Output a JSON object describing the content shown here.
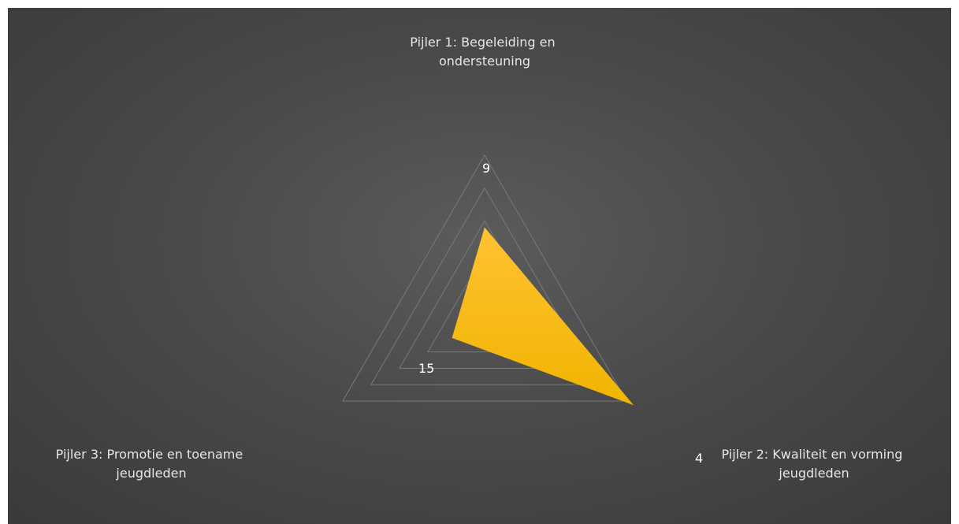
{
  "chart_data": {
    "type": "radar",
    "categories": [
      [
        "Pijler 1: Begeleiding en",
        "ondersteuning"
      ],
      [
        "Pijler 2: Kwaliteit en vorming",
        "jeugdleden"
      ],
      [
        "Pijler 3: Promotie en toename",
        "jeugdleden"
      ]
    ],
    "series": [
      {
        "values": [
          9,
          4,
          15
        ],
        "data_labels": [
          "9",
          "4",
          "15"
        ]
      }
    ],
    "rlim": [
      0,
      5
    ],
    "grid_levels": 5,
    "colors": {
      "fill_top": "#ffc233",
      "fill_bottom": "#f0b400",
      "grid": "#7a7a7a",
      "label": "#e6e6e6",
      "data_label": "#ffffff"
    }
  }
}
